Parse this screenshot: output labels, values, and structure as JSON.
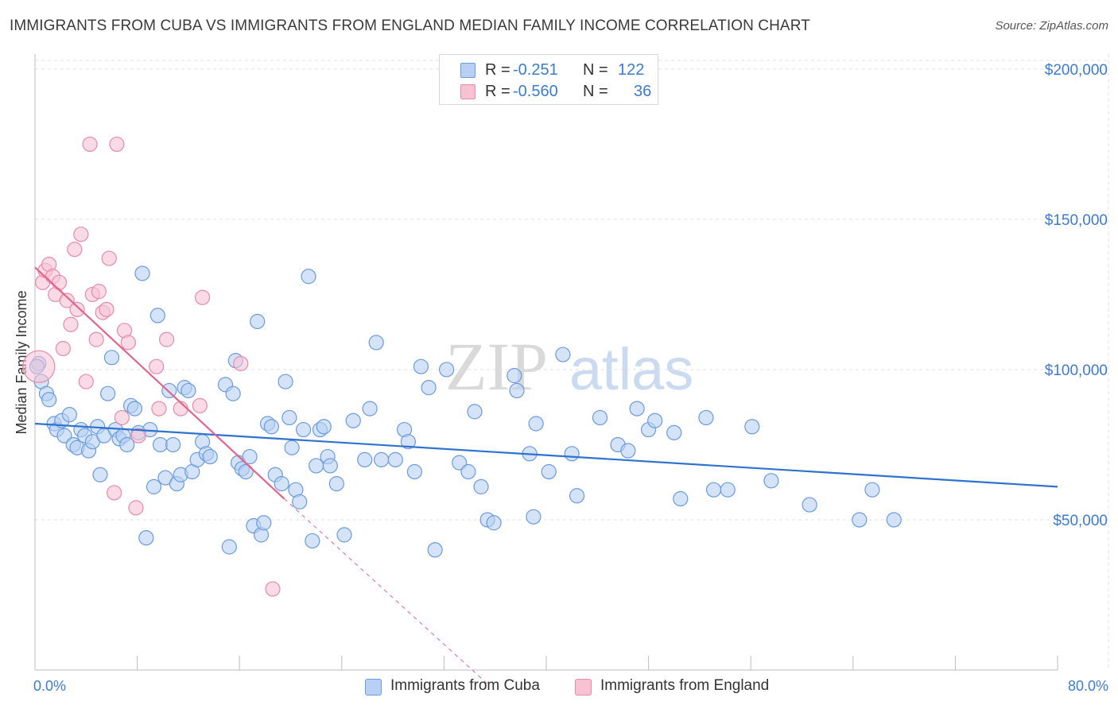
{
  "header": {
    "title": "IMMIGRANTS FROM CUBA VS IMMIGRANTS FROM ENGLAND MEDIAN FAMILY INCOME CORRELATION CHART",
    "source": "Source: ZipAtlas.com"
  },
  "watermark": {
    "zip": "ZIP",
    "atlas": "atlas"
  },
  "legend_top": {
    "rows": [
      {
        "r_label": "R =",
        "r_value": "-0.251",
        "n_label": "N =",
        "n_value": "122"
      },
      {
        "r_label": "R =",
        "r_value": "-0.560",
        "n_label": "N =",
        "n_value": "36"
      }
    ]
  },
  "legend_bottom": {
    "items": [
      {
        "label": "Immigrants from Cuba"
      },
      {
        "label": "Immigrants from England"
      }
    ]
  },
  "chart_data": {
    "type": "scatter",
    "title": "IMMIGRANTS FROM CUBA VS IMMIGRANTS FROM ENGLAND MEDIAN FAMILY INCOME CORRELATION CHART",
    "xlabel": "",
    "ylabel": "Median Family Income",
    "xlim": [
      0,
      80
    ],
    "ylim": [
      0,
      205000
    ],
    "x_tick_labels": [
      "0.0%",
      "80.0%"
    ],
    "y_ticks": [
      50000,
      100000,
      150000,
      200000
    ],
    "y_tick_labels": [
      "$50,000",
      "$100,000",
      "$150,000",
      "$200,000"
    ],
    "grid": true,
    "legend_position": "top-center",
    "colors": {
      "cuba_fill": "#b8d1f2",
      "cuba_stroke": "#6a9be0",
      "cuba_line": "#2f72d0",
      "england_fill": "#f7c3d3",
      "england_stroke": "#e98aa8",
      "england_line": "#e3648d",
      "tick_label": "#3d7bd1",
      "grid": "#e2e2e2"
    },
    "series": [
      {
        "name": "Immigrants from Cuba",
        "r": -0.251,
        "n": 122,
        "trend": {
          "x": [
            0,
            80
          ],
          "y": [
            82000,
            61000
          ]
        },
        "points": [
          [
            0.3,
            102000
          ],
          [
            0.5,
            96000
          ],
          [
            0.9,
            92000
          ],
          [
            1.1,
            90000
          ],
          [
            1.5,
            82000
          ],
          [
            1.7,
            80000
          ],
          [
            2.1,
            83000
          ],
          [
            2.3,
            78000
          ],
          [
            2.7,
            85000
          ],
          [
            3.0,
            75000
          ],
          [
            3.3,
            74000
          ],
          [
            3.6,
            80000
          ],
          [
            3.9,
            78000
          ],
          [
            4.2,
            73000
          ],
          [
            4.5,
            76000
          ],
          [
            4.9,
            81000
          ],
          [
            5.1,
            65000
          ],
          [
            5.4,
            78000
          ],
          [
            5.7,
            92000
          ],
          [
            6.0,
            104000
          ],
          [
            6.3,
            80000
          ],
          [
            6.6,
            77000
          ],
          [
            6.9,
            78000
          ],
          [
            7.2,
            75000
          ],
          [
            7.5,
            88000
          ],
          [
            7.8,
            87000
          ],
          [
            8.1,
            79000
          ],
          [
            8.4,
            132000
          ],
          [
            8.7,
            44000
          ],
          [
            9.0,
            80000
          ],
          [
            9.3,
            61000
          ],
          [
            9.6,
            118000
          ],
          [
            9.8,
            75000
          ],
          [
            10.2,
            64000
          ],
          [
            10.5,
            93000
          ],
          [
            10.8,
            75000
          ],
          [
            11.1,
            62000
          ],
          [
            11.4,
            65000
          ],
          [
            11.7,
            94000
          ],
          [
            12.0,
            93000
          ],
          [
            12.3,
            66000
          ],
          [
            12.7,
            70000
          ],
          [
            13.1,
            76000
          ],
          [
            13.4,
            72000
          ],
          [
            13.7,
            71000
          ],
          [
            14.9,
            95000
          ],
          [
            15.2,
            41000
          ],
          [
            15.5,
            92000
          ],
          [
            15.7,
            103000
          ],
          [
            15.9,
            69000
          ],
          [
            16.2,
            67000
          ],
          [
            16.5,
            66000
          ],
          [
            16.8,
            71000
          ],
          [
            17.1,
            48000
          ],
          [
            17.4,
            116000
          ],
          [
            17.7,
            45000
          ],
          [
            17.9,
            49000
          ],
          [
            18.2,
            82000
          ],
          [
            18.5,
            81000
          ],
          [
            18.8,
            65000
          ],
          [
            19.3,
            62000
          ],
          [
            19.6,
            96000
          ],
          [
            19.9,
            84000
          ],
          [
            20.1,
            74000
          ],
          [
            20.4,
            60000
          ],
          [
            20.7,
            56000
          ],
          [
            21.0,
            80000
          ],
          [
            21.4,
            131000
          ],
          [
            21.7,
            43000
          ],
          [
            22.0,
            68000
          ],
          [
            22.3,
            80000
          ],
          [
            22.6,
            81000
          ],
          [
            22.9,
            71000
          ],
          [
            23.1,
            68000
          ],
          [
            23.6,
            62000
          ],
          [
            24.2,
            45000
          ],
          [
            24.9,
            83000
          ],
          [
            25.8,
            70000
          ],
          [
            26.2,
            87000
          ],
          [
            26.7,
            109000
          ],
          [
            27.1,
            70000
          ],
          [
            28.2,
            70000
          ],
          [
            28.9,
            80000
          ],
          [
            29.2,
            76000
          ],
          [
            29.7,
            66000
          ],
          [
            30.2,
            101000
          ],
          [
            30.8,
            94000
          ],
          [
            31.3,
            40000
          ],
          [
            32.2,
            100000
          ],
          [
            33.2,
            69000
          ],
          [
            33.9,
            66000
          ],
          [
            34.4,
            86000
          ],
          [
            34.9,
            61000
          ],
          [
            35.4,
            50000
          ],
          [
            35.9,
            49000
          ],
          [
            37.5,
            98000
          ],
          [
            37.7,
            93000
          ],
          [
            38.7,
            72000
          ],
          [
            39.0,
            51000
          ],
          [
            39.2,
            82000
          ],
          [
            40.2,
            66000
          ],
          [
            41.3,
            105000
          ],
          [
            42.0,
            72000
          ],
          [
            42.4,
            58000
          ],
          [
            44.2,
            84000
          ],
          [
            45.6,
            75000
          ],
          [
            46.4,
            73000
          ],
          [
            47.1,
            87000
          ],
          [
            48.0,
            80000
          ],
          [
            48.5,
            83000
          ],
          [
            50.0,
            79000
          ],
          [
            50.5,
            57000
          ],
          [
            52.5,
            84000
          ],
          [
            53.1,
            60000
          ],
          [
            54.2,
            60000
          ],
          [
            56.1,
            81000
          ],
          [
            57.6,
            63000
          ],
          [
            60.6,
            55000
          ],
          [
            64.5,
            50000
          ],
          [
            65.5,
            60000
          ],
          [
            67.2,
            50000
          ],
          [
            0.15,
            101000
          ]
        ]
      },
      {
        "name": "Immigrants from England",
        "r": -0.56,
        "n": 36,
        "trend": {
          "x": [
            0,
            19.5
          ],
          "y": [
            134000,
            57000
          ]
        },
        "trend_extension": {
          "x": [
            19.5,
            35.5
          ],
          "y": [
            57000,
            -5000
          ]
        },
        "points": [
          [
            0.3,
            101000
          ],
          [
            0.6,
            129000
          ],
          [
            0.8,
            133000
          ],
          [
            1.1,
            135000
          ],
          [
            1.4,
            131000
          ],
          [
            1.6,
            125000
          ],
          [
            1.9,
            129000
          ],
          [
            2.2,
            107000
          ],
          [
            2.5,
            123000
          ],
          [
            2.8,
            115000
          ],
          [
            3.1,
            140000
          ],
          [
            3.3,
            120000
          ],
          [
            3.6,
            145000
          ],
          [
            4.0,
            96000
          ],
          [
            4.3,
            175000
          ],
          [
            4.5,
            125000
          ],
          [
            4.8,
            110000
          ],
          [
            5.0,
            126000
          ],
          [
            5.3,
            119000
          ],
          [
            5.6,
            120000
          ],
          [
            5.8,
            137000
          ],
          [
            6.2,
            59000
          ],
          [
            6.4,
            175000
          ],
          [
            6.8,
            84000
          ],
          [
            7.0,
            113000
          ],
          [
            7.3,
            109000
          ],
          [
            7.9,
            54000
          ],
          [
            8.1,
            78000
          ],
          [
            9.5,
            101000
          ],
          [
            9.7,
            87000
          ],
          [
            10.3,
            110000
          ],
          [
            11.4,
            87000
          ],
          [
            12.9,
            88000
          ],
          [
            13.1,
            124000
          ],
          [
            16.1,
            102000
          ],
          [
            18.6,
            27000
          ]
        ]
      }
    ]
  }
}
